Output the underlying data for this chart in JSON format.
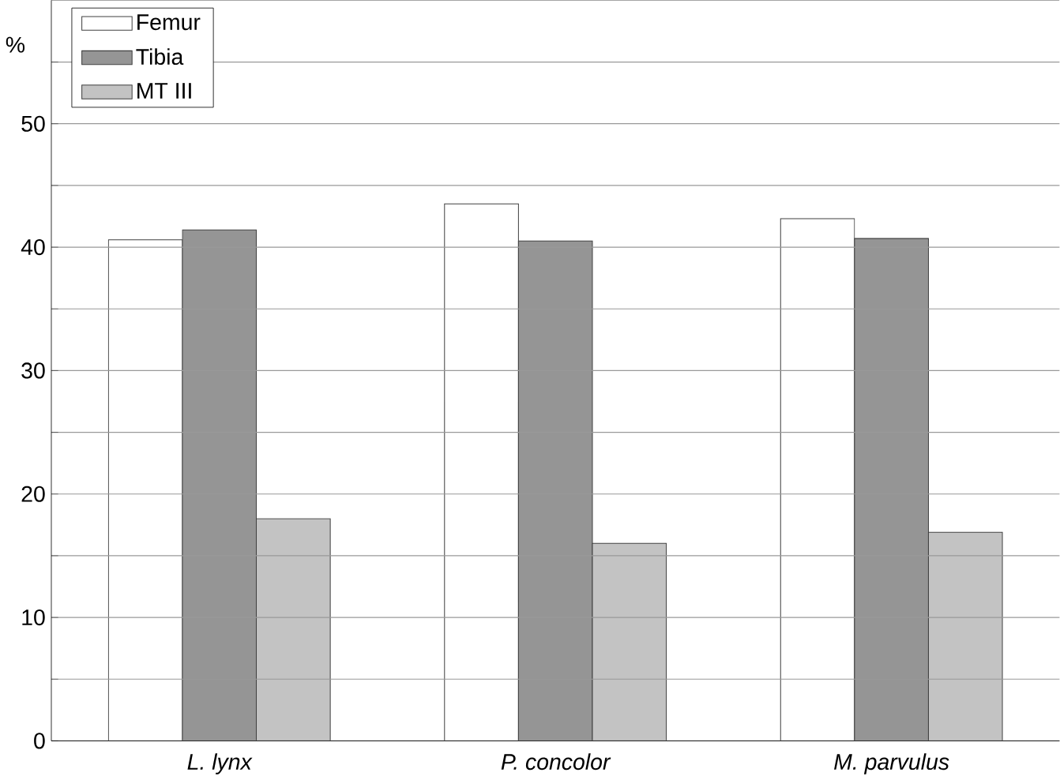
{
  "chart_data": {
    "type": "bar",
    "ylabel": "%",
    "categories": [
      "L. lynx",
      "P. concolor",
      "M. parvulus"
    ],
    "series": [
      {
        "name": "Femur",
        "color": "#ffffff",
        "values": [
          40.6,
          43.5,
          42.3
        ]
      },
      {
        "name": "Tibia",
        "color": "#959595",
        "values": [
          41.4,
          40.5,
          40.7
        ]
      },
      {
        "name": "MT III",
        "color": "#c3c3c3",
        "values": [
          18.0,
          16.0,
          16.9
        ]
      }
    ],
    "ylim": [
      0,
      60
    ],
    "yticks": [
      0,
      {
        "value": 5,
        "label": null
      },
      10,
      {
        "value": 15,
        "label": null
      },
      20,
      {
        "value": 25,
        "label": null
      },
      30,
      {
        "value": 35,
        "label": null
      },
      40,
      {
        "value": 45,
        "label": null
      },
      50,
      {
        "value": 55,
        "label": null
      }
    ],
    "grid": "y",
    "legend": "top left"
  }
}
